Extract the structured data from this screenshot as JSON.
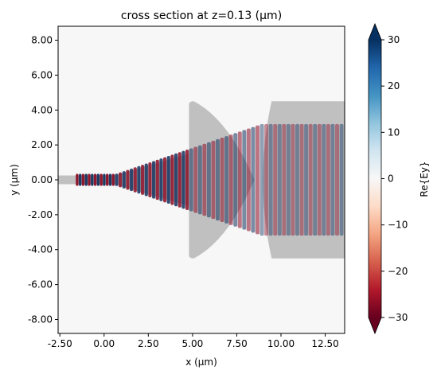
{
  "chart_data": {
    "type": "heatmap",
    "title": "cross section at z=0.13 (μm)",
    "xlabel": "x (μm)",
    "ylabel": "y (μm)",
    "xlim": [
      -2.6,
      13.6
    ],
    "ylim": [
      -8.8,
      8.8
    ],
    "x_ticks": [
      "-2.50",
      "0.00",
      "2.50",
      "5.00",
      "7.50",
      "10.00",
      "12.50"
    ],
    "x_tick_values": [
      -2.5,
      0,
      2.5,
      5,
      7.5,
      10,
      12.5
    ],
    "y_ticks": [
      "8.00",
      "6.00",
      "4.00",
      "2.00",
      "0.00",
      "-2.00",
      "-4.00",
      "-6.00",
      "-8.00"
    ],
    "y_tick_values": [
      8,
      6,
      4,
      2,
      0,
      -2,
      -4,
      -6,
      -8
    ],
    "colorbar": {
      "label": "Re{Ey}",
      "range": [
        -30,
        30
      ],
      "ticks": [
        "30",
        "20",
        "10",
        "0",
        "−10",
        "−20",
        "−30"
      ],
      "tick_values": [
        30,
        20,
        10,
        0,
        -10,
        -20,
        -30
      ],
      "colormap": "RdBu_r"
    },
    "structures": [
      {
        "name": "input waveguide",
        "x": [
          -2.6,
          0.6
        ],
        "y": [
          -0.25,
          0.25
        ]
      },
      {
        "name": "taper",
        "x": [
          0.6,
          4.8
        ],
        "y_start": [
          -0.25,
          0.25
        ],
        "y_end": [
          -1.5,
          1.5
        ]
      },
      {
        "name": "lens 1",
        "x": [
          4.8,
          8.5
        ],
        "y": [
          -4.5,
          4.5
        ]
      },
      {
        "name": "output slab",
        "x": [
          9.2,
          13.6
        ],
        "y": [
          -4.5,
          4.5
        ]
      }
    ],
    "structure_color": "#c0c0c0"
  }
}
